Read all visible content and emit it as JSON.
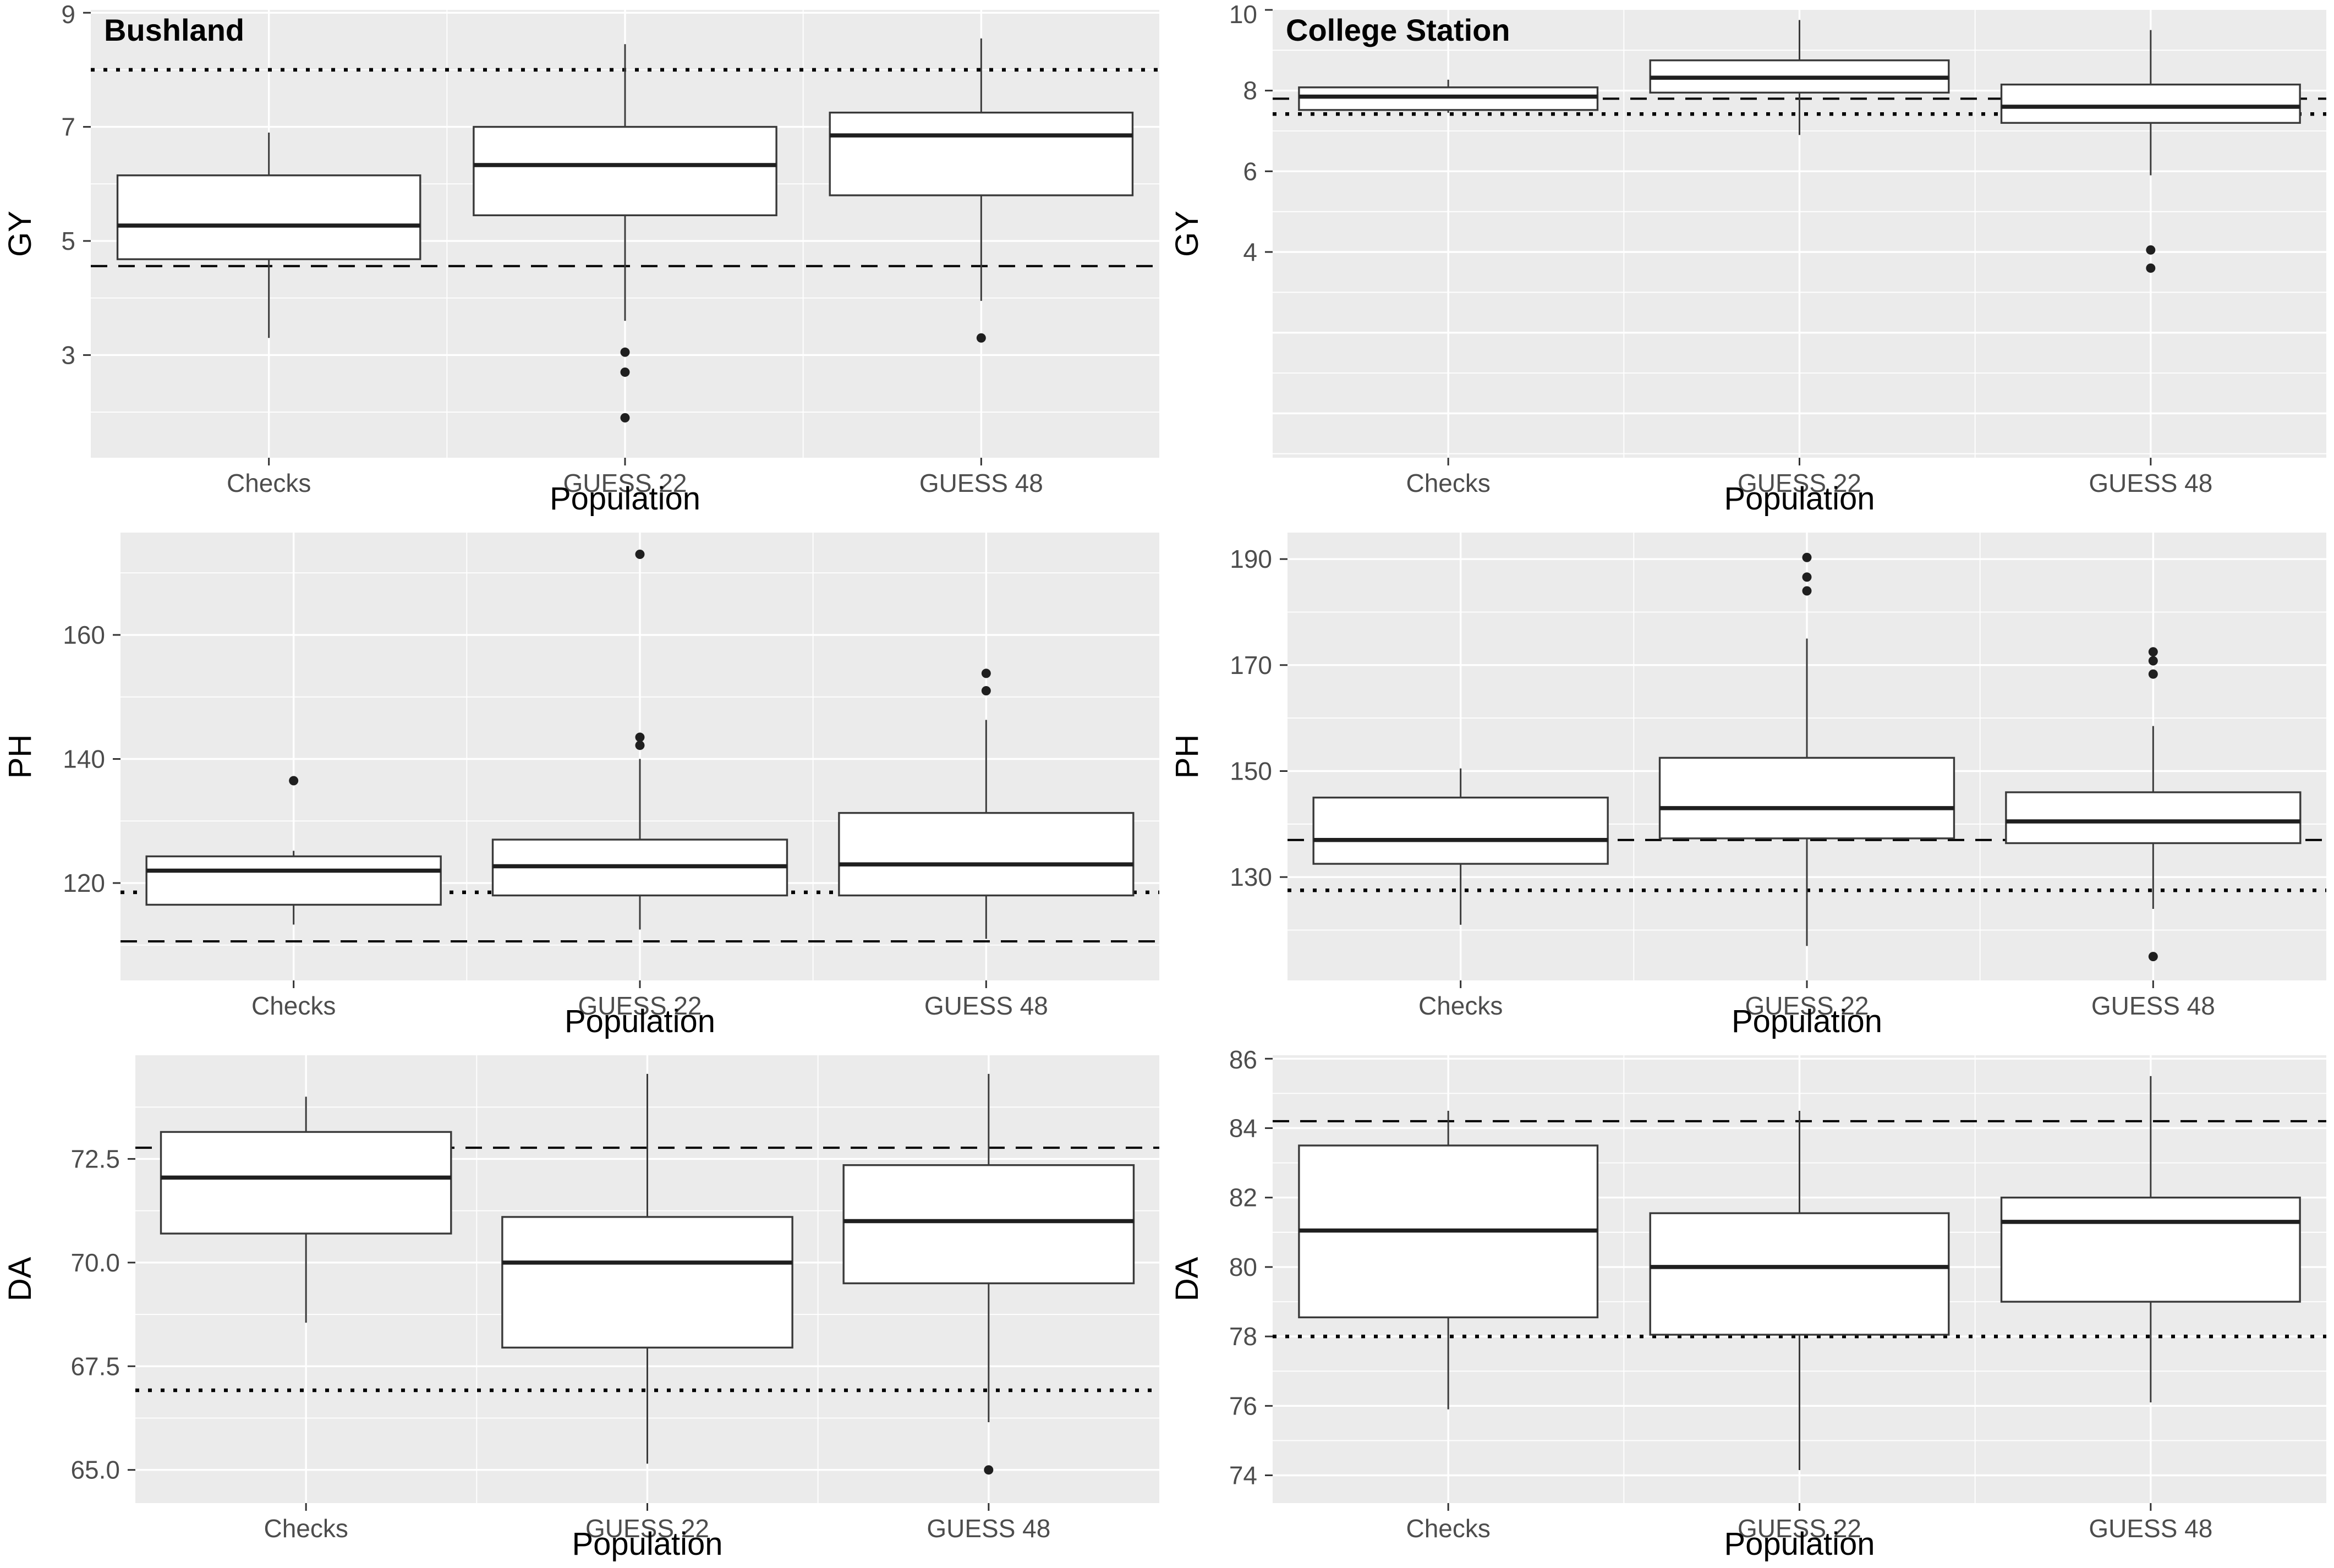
{
  "figure": {
    "rows": 3,
    "columns": 2,
    "column_titles": [
      "Bushland",
      "College Station"
    ],
    "row_variables": [
      "GY",
      "PH",
      "DA"
    ],
    "x_axis_title": "Population",
    "categories": [
      "Checks",
      "GUESS 22",
      "GUESS 48"
    ]
  },
  "colors": {
    "page_bg": "#FFFFFF",
    "panel_bg": "#EBEBEB",
    "grid": "#FFFFFF",
    "box_fill": "#FFFFFF",
    "box_stroke": "#3A3A3A",
    "median_stroke": "#1F1F1F",
    "outlier_fill": "#1F1F1F",
    "ref_line": "#000000",
    "tick_text": "#4D4D4D",
    "tick_mark": "#333333",
    "axis_title_text": "#000000",
    "facet_title_text": "#000000"
  },
  "chart_data": [
    {
      "type": "boxplot",
      "panel": "bushland-gy",
      "title": "Bushland",
      "ylabel": "GY",
      "xlabel": "Population",
      "legend": "none",
      "grid": true,
      "categories": [
        "Checks",
        "GUESS 22",
        "GUESS 48"
      ],
      "ylim": [
        1.2,
        9.05
      ],
      "yticks": [
        3,
        5,
        7,
        9
      ],
      "ytick_labels": [
        "3",
        "5",
        "7",
        "9"
      ],
      "grid_major": [
        3,
        5,
        7,
        9
      ],
      "grid_minor": [
        2,
        4,
        6,
        8
      ],
      "ref_dashed": 4.56,
      "ref_dotted": 8.0,
      "boxes": [
        {
          "category": "Checks",
          "low": 3.3,
          "q1": 4.68,
          "median": 5.27,
          "q3": 6.15,
          "high": 6.9,
          "outliers": []
        },
        {
          "category": "GUESS 22",
          "low": 3.6,
          "q1": 5.45,
          "median": 6.33,
          "q3": 7.0,
          "high": 8.45,
          "outliers": [
            3.05,
            2.7,
            1.9
          ]
        },
        {
          "category": "GUESS 48",
          "low": 3.95,
          "q1": 5.8,
          "median": 6.85,
          "q3": 7.25,
          "high": 8.55,
          "outliers": [
            3.3
          ]
        }
      ]
    },
    {
      "type": "boxplot",
      "panel": "college-station-gy",
      "title": "College Station",
      "ylabel": "GY",
      "xlabel": "Population",
      "legend": "none",
      "grid": true,
      "categories": [
        "Checks",
        "GUESS 22",
        "GUESS 48"
      ],
      "ylim": [
        -1.1,
        10.0
      ],
      "yticks": [
        4,
        6,
        8,
        10
      ],
      "ytick_labels": [
        "4",
        "6",
        "8",
        "10"
      ],
      "grid_major": [
        0,
        2,
        4,
        6,
        8,
        10
      ],
      "grid_minor": [
        -1,
        1,
        3,
        5,
        7,
        9
      ],
      "ref_dashed": 7.8,
      "ref_dotted": 7.42,
      "boxes": [
        {
          "category": "Checks",
          "low": 7.45,
          "q1": 7.52,
          "median": 7.85,
          "q3": 8.08,
          "high": 8.27,
          "outliers": []
        },
        {
          "category": "GUESS 22",
          "low": 6.9,
          "q1": 7.95,
          "median": 8.32,
          "q3": 8.75,
          "high": 9.75,
          "outliers": []
        },
        {
          "category": "GUESS 48",
          "low": 5.9,
          "q1": 7.2,
          "median": 7.6,
          "q3": 8.15,
          "high": 9.5,
          "outliers": [
            4.05,
            3.6
          ]
        }
      ]
    },
    {
      "type": "boxplot",
      "panel": "bushland-ph",
      "title": "",
      "ylabel": "PH",
      "xlabel": "Population",
      "legend": "none",
      "grid": true,
      "categories": [
        "Checks",
        "GUESS 22",
        "GUESS 48"
      ],
      "ylim": [
        104.3,
        176.5
      ],
      "yticks": [
        120,
        140,
        160
      ],
      "ytick_labels": [
        "120",
        "140",
        "160"
      ],
      "grid_major": [
        120,
        140,
        160
      ],
      "grid_minor": [
        110,
        130,
        150,
        170
      ],
      "ref_dashed": 110.6,
      "ref_dotted": 118.5,
      "boxes": [
        {
          "category": "Checks",
          "low": 113.3,
          "q1": 116.5,
          "median": 122.0,
          "q3": 124.3,
          "high": 125.2,
          "outliers": [
            136.5
          ]
        },
        {
          "category": "GUESS 22",
          "low": 112.5,
          "q1": 118.0,
          "median": 122.7,
          "q3": 127.0,
          "high": 140.0,
          "outliers": [
            173.0,
            143.5,
            142.2
          ]
        },
        {
          "category": "GUESS 48",
          "low": 111.0,
          "q1": 118.0,
          "median": 123.0,
          "q3": 131.3,
          "high": 146.3,
          "outliers": [
            153.8,
            151.0
          ]
        }
      ]
    },
    {
      "type": "boxplot",
      "panel": "college-station-ph",
      "title": "",
      "ylabel": "PH",
      "xlabel": "Population",
      "legend": "none",
      "grid": true,
      "categories": [
        "Checks",
        "GUESS 22",
        "GUESS 48"
      ],
      "ylim": [
        110.5,
        195.0
      ],
      "yticks": [
        130,
        150,
        170,
        190
      ],
      "ytick_labels": [
        "130",
        "150",
        "170",
        "190"
      ],
      "grid_major": [
        130,
        150,
        170,
        190
      ],
      "grid_minor": [
        120,
        140,
        160,
        180
      ],
      "ref_dashed": 137.0,
      "ref_dotted": 127.5,
      "boxes": [
        {
          "category": "Checks",
          "low": 121.0,
          "q1": 132.5,
          "median": 137.0,
          "q3": 145.0,
          "high": 150.5,
          "outliers": []
        },
        {
          "category": "GUESS 22",
          "low": 117.0,
          "q1": 137.3,
          "median": 143.0,
          "q3": 152.5,
          "high": 175.0,
          "outliers": [
            190.3,
            186.6,
            184.0
          ]
        },
        {
          "category": "GUESS 48",
          "low": 124.0,
          "q1": 136.4,
          "median": 140.5,
          "q3": 146.0,
          "high": 158.5,
          "outliers": [
            172.5,
            170.8,
            168.3,
            115.0
          ]
        }
      ]
    },
    {
      "type": "boxplot",
      "panel": "bushland-da",
      "title": "",
      "ylabel": "DA",
      "xlabel": "Population",
      "legend": "none",
      "grid": true,
      "categories": [
        "Checks",
        "GUESS 22",
        "GUESS 48"
      ],
      "ylim": [
        64.2,
        75.0
      ],
      "yticks": [
        65.0,
        67.5,
        70.0,
        72.5
      ],
      "ytick_labels": [
        "65.0",
        "67.5",
        "70.0",
        "72.5"
      ],
      "grid_major": [
        65.0,
        67.5,
        70.0,
        72.5
      ],
      "grid_minor": [
        66.25,
        68.75,
        71.25,
        73.75
      ],
      "ref_dashed": 72.77,
      "ref_dotted": 66.92,
      "boxes": [
        {
          "category": "Checks",
          "low": 68.55,
          "q1": 70.7,
          "median": 72.05,
          "q3": 73.15,
          "high": 74.0,
          "outliers": []
        },
        {
          "category": "GUESS 22",
          "low": 65.15,
          "q1": 67.95,
          "median": 70.0,
          "q3": 71.1,
          "high": 74.55,
          "outliers": []
        },
        {
          "category": "GUESS 48",
          "low": 66.15,
          "q1": 69.5,
          "median": 71.0,
          "q3": 72.35,
          "high": 74.55,
          "outliers": [
            65.0
          ]
        }
      ]
    },
    {
      "type": "boxplot",
      "panel": "college-station-da",
      "title": "",
      "ylabel": "DA",
      "xlabel": "Population",
      "legend": "none",
      "grid": true,
      "categories": [
        "Checks",
        "GUESS 22",
        "GUESS 48"
      ],
      "ylim": [
        73.2,
        86.1
      ],
      "yticks": [
        74,
        76,
        78,
        80,
        82,
        84,
        86
      ],
      "ytick_labels": [
        "74",
        "76",
        "78",
        "80",
        "82",
        "84",
        "86"
      ],
      "grid_major": [
        74,
        76,
        78,
        80,
        82,
        84,
        86
      ],
      "grid_minor": [
        75,
        77,
        79,
        81,
        83,
        85
      ],
      "ref_dashed": 84.2,
      "ref_dotted": 78.0,
      "boxes": [
        {
          "category": "Checks",
          "low": 75.9,
          "q1": 78.55,
          "median": 81.05,
          "q3": 83.5,
          "high": 84.5,
          "outliers": []
        },
        {
          "category": "GUESS 22",
          "low": 74.15,
          "q1": 78.05,
          "median": 80.0,
          "q3": 81.55,
          "high": 84.5,
          "outliers": []
        },
        {
          "category": "GUESS 48",
          "low": 76.1,
          "q1": 79.0,
          "median": 81.3,
          "q3": 82.0,
          "high": 85.5,
          "outliers": []
        }
      ]
    }
  ]
}
